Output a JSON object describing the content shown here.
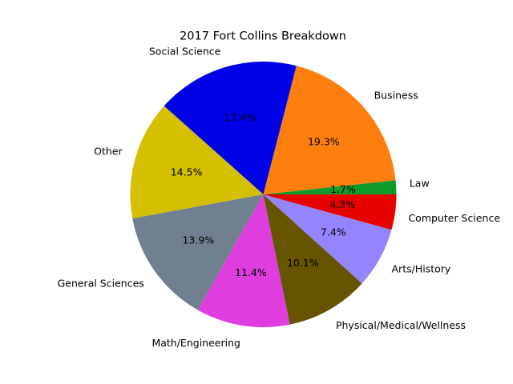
{
  "chart_data": {
    "type": "pie",
    "title": "2017 Fort Collins Breakdown",
    "start_angle_deg": 0,
    "direction": "counterclockwise",
    "slices": [
      {
        "label": "Law",
        "value": 1.7,
        "percent_label": "1.7%",
        "color": "#0e9b2b"
      },
      {
        "label": "Business",
        "value": 19.3,
        "percent_label": "19.3%",
        "color": "#ff7f0e"
      },
      {
        "label": "Social Science",
        "value": 17.4,
        "percent_label": "17.4%",
        "color": "#0000e6"
      },
      {
        "label": "Other",
        "value": 14.5,
        "percent_label": "14.5%",
        "color": "#d4c000"
      },
      {
        "label": "General Sciences",
        "value": 13.9,
        "percent_label": "13.9%",
        "color": "#708090"
      },
      {
        "label": "Math/Engineering",
        "value": 11.4,
        "percent_label": "11.4%",
        "color": "#de3ede"
      },
      {
        "label": "Physical/Medical/Wellness",
        "value": 10.1,
        "percent_label": "10.1%",
        "color": "#665400"
      },
      {
        "label": "Arts/History",
        "value": 7.4,
        "percent_label": "7.4%",
        "color": "#9485ff"
      },
      {
        "label": "Computer Science",
        "value": 4.3,
        "percent_label": "4.3%",
        "color": "#e60000"
      }
    ]
  }
}
